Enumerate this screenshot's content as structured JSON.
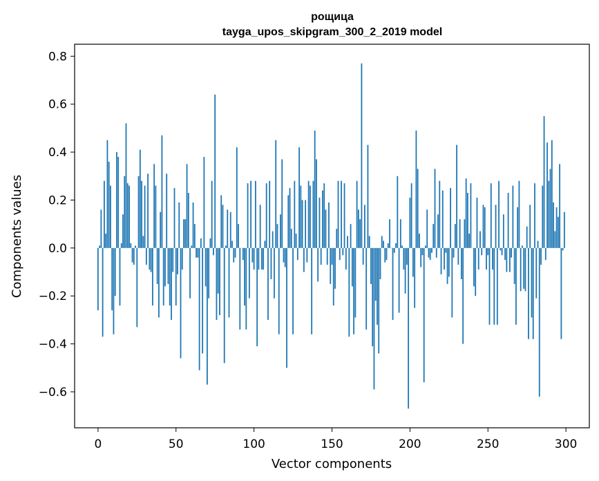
{
  "chart_data": {
    "type": "bar",
    "title": "рощица",
    "subtitle": "tayga_upos_skipgram_300_2_2019 model",
    "xlabel": "Vector components",
    "ylabel": "Components values",
    "xlim": [
      -15,
      315
    ],
    "ylim": [
      -0.75,
      0.85
    ],
    "xticks": [
      0,
      50,
      100,
      150,
      200,
      250,
      300
    ],
    "xtick_labels": [
      "0",
      "50",
      "100",
      "150",
      "200",
      "250",
      "300"
    ],
    "yticks": [
      -0.6,
      -0.4,
      -0.2,
      0.0,
      0.2,
      0.4,
      0.6,
      0.8
    ],
    "ytick_labels": [
      "−0.6",
      "−0.4",
      "−0.2",
      "0.0",
      "0.2",
      "0.4",
      "0.6",
      "0.8"
    ],
    "grid": false,
    "bar_color": "#1f77b4",
    "x_start": 0,
    "values": [
      -0.26,
      0.01,
      0.16,
      -0.37,
      0.28,
      0.06,
      0.45,
      0.36,
      0.26,
      -0.26,
      -0.36,
      -0.2,
      0.4,
      0.38,
      -0.24,
      0.02,
      0.14,
      0.3,
      0.52,
      0.27,
      0.26,
      0.02,
      -0.06,
      -0.07,
      0.01,
      -0.33,
      0.3,
      0.41,
      0.28,
      0.05,
      0.26,
      -0.07,
      0.31,
      -0.09,
      -0.1,
      -0.24,
      0.35,
      0.26,
      -0.15,
      -0.29,
      0.15,
      0.47,
      -0.24,
      -0.16,
      0.31,
      -0.15,
      -0.24,
      -0.3,
      -0.1,
      0.25,
      -0.24,
      -0.11,
      0.19,
      -0.46,
      -0.09,
      0.12,
      0.12,
      0.35,
      0.23,
      -0.21,
      0.01,
      0.19,
      0.1,
      -0.04,
      -0.04,
      -0.51,
      0.04,
      -0.44,
      0.38,
      -0.16,
      -0.57,
      -0.21,
      0.04,
      0.28,
      -0.03,
      0.64,
      -0.3,
      -0.19,
      -0.28,
      0.22,
      0.18,
      -0.48,
      0.01,
      0.16,
      -0.29,
      0.15,
      0.03,
      -0.06,
      -0.04,
      0.42,
      0.1,
      -0.34,
      0.0,
      -0.05,
      -0.24,
      -0.34,
      0.27,
      -0.21,
      0.28,
      -0.06,
      -0.09,
      0.28,
      -0.41,
      -0.09,
      0.18,
      -0.09,
      -0.09,
      0.03,
      0.27,
      -0.3,
      0.28,
      -0.13,
      0.07,
      -0.21,
      0.45,
      0.1,
      -0.36,
      0.14,
      0.37,
      -0.06,
      -0.08,
      -0.5,
      0.22,
      0.25,
      0.08,
      -0.36,
      0.28,
      0.06,
      -0.05,
      0.42,
      0.26,
      0.2,
      -0.1,
      0.2,
      -0.06,
      0.28,
      0.26,
      -0.36,
      0.28,
      0.49,
      0.37,
      -0.14,
      0.21,
      -0.07,
      0.24,
      0.27,
      0.16,
      -0.07,
      0.19,
      -0.15,
      -0.07,
      -0.24,
      -0.17,
      0.08,
      0.28,
      -0.05,
      0.28,
      -0.03,
      0.27,
      -0.09,
      0.05,
      -0.37,
      0.1,
      -0.16,
      -0.36,
      -0.29,
      0.28,
      0.16,
      0.12,
      0.77,
      -0.07,
      0.18,
      -0.34,
      0.43,
      0.05,
      -0.15,
      -0.41,
      -0.59,
      -0.22,
      -0.32,
      -0.44,
      -0.13,
      0.05,
      0.03,
      -0.06,
      -0.05,
      0.02,
      0.12,
      0.0,
      -0.3,
      -0.02,
      0.02,
      0.3,
      -0.27,
      0.12,
      0.01,
      -0.09,
      -0.19,
      -0.07,
      -0.67,
      0.21,
      0.27,
      -0.12,
      -0.25,
      0.49,
      0.33,
      0.06,
      -0.08,
      -0.03,
      -0.56,
      0.01,
      0.16,
      -0.04,
      -0.05,
      -0.02,
      0.1,
      0.33,
      -0.04,
      0.14,
      0.28,
      -0.11,
      0.24,
      -0.09,
      -0.02,
      -0.15,
      -0.12,
      0.25,
      -0.29,
      -0.04,
      0.1,
      0.43,
      -0.07,
      0.12,
      -0.13,
      -0.4,
      0.12,
      0.29,
      0.23,
      0.06,
      0.27,
      0.0,
      -0.16,
      -0.2,
      0.21,
      -0.09,
      0.07,
      -0.03,
      0.18,
      0.17,
      -0.09,
      -0.03,
      -0.32,
      0.27,
      -0.09,
      -0.32,
      0.18,
      -0.32,
      0.28,
      -0.01,
      -0.03,
      0.14,
      -0.05,
      -0.1,
      0.23,
      -0.1,
      -0.04,
      0.26,
      -0.15,
      -0.32,
      0.17,
      0.28,
      -0.18,
      0.01,
      -0.17,
      -0.18,
      0.09,
      -0.38,
      0.18,
      -0.29,
      -0.38,
      0.27,
      -0.21,
      0.03,
      -0.62,
      -0.07,
      0.26,
      0.55,
      -0.05,
      0.44,
      0.28,
      0.33,
      0.45,
      0.19,
      0.07,
      0.17,
      0.13,
      0.35,
      -0.38,
      -0.01,
      0.15
    ]
  }
}
